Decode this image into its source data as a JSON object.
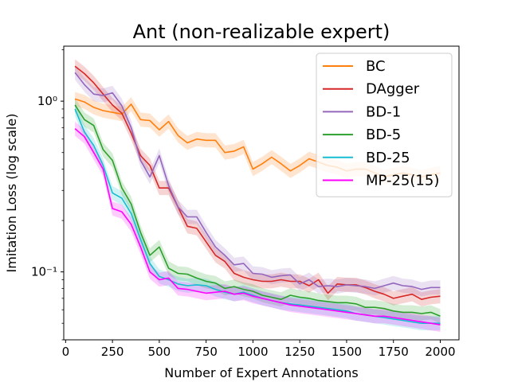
{
  "chart_data": {
    "type": "line",
    "title": "Ant (non-realizable expert)",
    "xlabel": "Number of Expert Annotations",
    "ylabel": "Imitation Loss (log scale)",
    "xlim": [
      -10,
      2100
    ],
    "ylim": [
      0.04,
      2.1
    ],
    "yscale": "log",
    "x_ticks": [
      0,
      250,
      500,
      750,
      1000,
      1250,
      1500,
      1750,
      2000
    ],
    "y_ticks": [
      {
        "value": 1.0,
        "label": "10⁰"
      },
      {
        "value": 0.1,
        "label": "10⁻¹"
      }
    ],
    "legend_position": "top-right",
    "x": [
      50,
      100,
      150,
      200,
      250,
      300,
      350,
      400,
      450,
      500,
      550,
      600,
      650,
      700,
      750,
      800,
      850,
      900,
      950,
      1000,
      1050,
      1100,
      1150,
      1200,
      1250,
      1300,
      1350,
      1400,
      1450,
      1500,
      1550,
      1600,
      1650,
      1700,
      1750,
      1800,
      1850,
      1900,
      1950,
      2000
    ],
    "series": [
      {
        "name": "BC",
        "color": "#ff7f0e",
        "values": [
          1.03,
          0.99,
          0.92,
          0.88,
          0.86,
          0.84,
          0.96,
          0.78,
          0.77,
          0.68,
          0.76,
          0.63,
          0.57,
          0.6,
          0.59,
          0.59,
          0.5,
          0.51,
          0.54,
          0.4,
          0.43,
          0.47,
          0.43,
          0.39,
          0.42,
          0.46,
          0.44,
          0.42,
          0.41,
          0.39,
          0.4,
          0.4,
          0.38,
          0.36,
          0.37,
          0.38,
          0.37,
          0.36,
          0.37,
          0.38
        ]
      },
      {
        "name": "DAgger",
        "color": "#d62728",
        "values": [
          1.6,
          1.45,
          1.28,
          1.1,
          0.95,
          0.85,
          0.65,
          0.48,
          0.42,
          0.31,
          0.31,
          0.24,
          0.185,
          0.18,
          0.15,
          0.125,
          0.115,
          0.098,
          0.093,
          0.09,
          0.088,
          0.088,
          0.09,
          0.088,
          0.088,
          0.083,
          0.09,
          0.075,
          0.085,
          0.084,
          0.084,
          0.081,
          0.077,
          0.074,
          0.07,
          0.072,
          0.074,
          0.069,
          0.071,
          0.072
        ]
      },
      {
        "name": "BD-1",
        "color": "#9467bd",
        "values": [
          1.47,
          1.25,
          1.1,
          1.08,
          1.12,
          0.94,
          0.7,
          0.45,
          0.36,
          0.48,
          0.32,
          0.24,
          0.21,
          0.21,
          0.17,
          0.14,
          0.125,
          0.11,
          0.112,
          0.098,
          0.097,
          0.093,
          0.095,
          0.096,
          0.085,
          0.09,
          0.082,
          0.083,
          0.082,
          0.084,
          0.083,
          0.082,
          0.08,
          0.083,
          0.086,
          0.083,
          0.082,
          0.079,
          0.081,
          0.081
        ]
      },
      {
        "name": "BD-5",
        "color": "#2ca02c",
        "values": [
          0.95,
          0.78,
          0.72,
          0.52,
          0.45,
          0.31,
          0.25,
          0.17,
          0.125,
          0.14,
          0.105,
          0.098,
          0.097,
          0.092,
          0.088,
          0.086,
          0.08,
          0.082,
          0.079,
          0.077,
          0.073,
          0.071,
          0.069,
          0.073,
          0.071,
          0.07,
          0.068,
          0.067,
          0.066,
          0.066,
          0.065,
          0.062,
          0.062,
          0.061,
          0.059,
          0.058,
          0.058,
          0.057,
          0.058,
          0.055
        ]
      },
      {
        "name": "BD-25",
        "color": "#17becf",
        "values": [
          0.9,
          0.66,
          0.55,
          0.42,
          0.29,
          0.27,
          0.22,
          0.155,
          0.112,
          0.094,
          0.09,
          0.085,
          0.083,
          0.084,
          0.083,
          0.079,
          0.076,
          0.074,
          0.076,
          0.073,
          0.07,
          0.068,
          0.066,
          0.065,
          0.064,
          0.063,
          0.062,
          0.061,
          0.06,
          0.059,
          0.057,
          0.056,
          0.055,
          0.054,
          0.053,
          0.052,
          0.051,
          0.05,
          0.05,
          0.05
        ]
      },
      {
        "name": "MP-25(15)",
        "color": "#ff00ff",
        "values": [
          0.69,
          0.62,
          0.5,
          0.4,
          0.235,
          0.225,
          0.19,
          0.14,
          0.1,
          0.09,
          0.092,
          0.08,
          0.079,
          0.077,
          0.075,
          0.076,
          0.077,
          0.074,
          0.075,
          0.072,
          0.07,
          0.068,
          0.066,
          0.064,
          0.063,
          0.062,
          0.061,
          0.06,
          0.059,
          0.058,
          0.057,
          0.056,
          0.055,
          0.055,
          0.054,
          0.053,
          0.052,
          0.051,
          0.05,
          0.049
        ]
      }
    ]
  }
}
